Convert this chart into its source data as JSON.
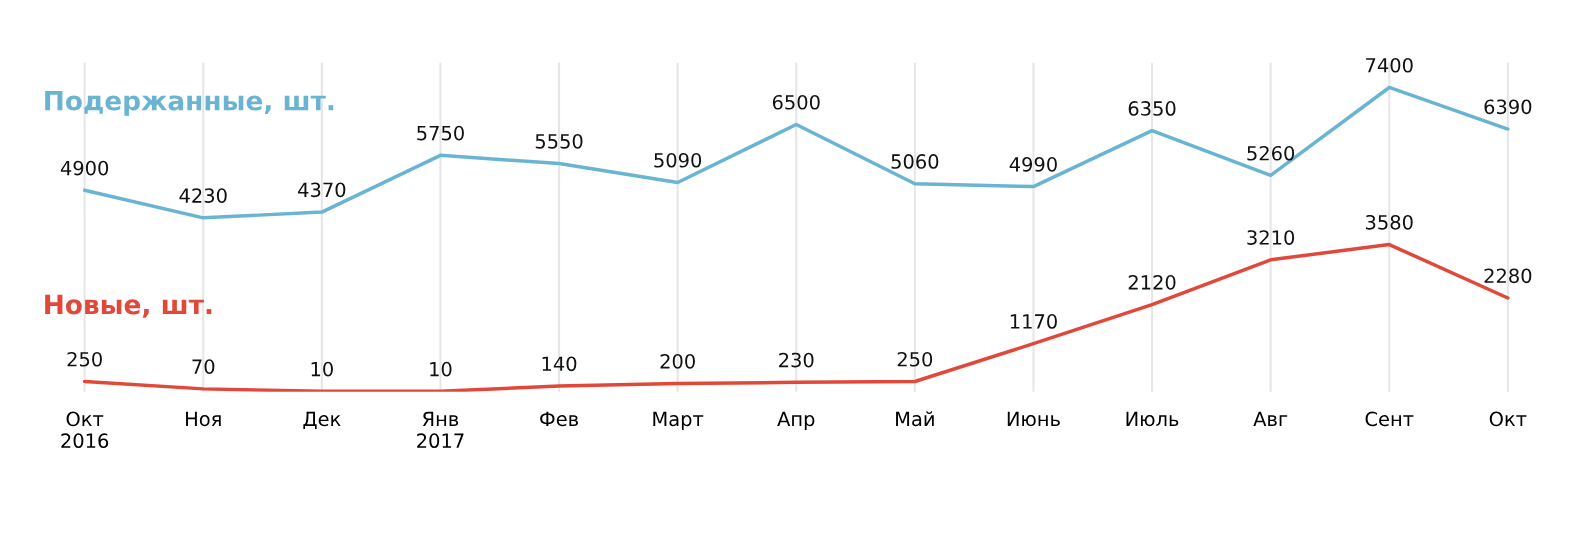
{
  "chart_data": {
    "type": "line",
    "categories": [
      "Окт\n2016",
      "Ноя",
      "Дек",
      "Янв\n2017",
      "Фев",
      "Март",
      "Апр",
      "Май",
      "Июнь",
      "Июль",
      "Авг",
      "Сент",
      "Окт"
    ],
    "series": [
      {
        "name": "Подержанные, шт.",
        "color": "#6ab4d3",
        "values": [
          4900,
          4230,
          4370,
          5750,
          5550,
          5090,
          6500,
          5060,
          4990,
          6350,
          5260,
          7400,
          6390
        ]
      },
      {
        "name": "Новые, шт.",
        "color": "#e2483a",
        "values": [
          250,
          70,
          10,
          10,
          140,
          200,
          230,
          250,
          1170,
          2120,
          3210,
          3580,
          2280
        ]
      }
    ],
    "ylim": [
      0,
      8000
    ],
    "data_labels": true,
    "grid": "x",
    "legend": false,
    "marker": "none",
    "line_style": "solid"
  }
}
